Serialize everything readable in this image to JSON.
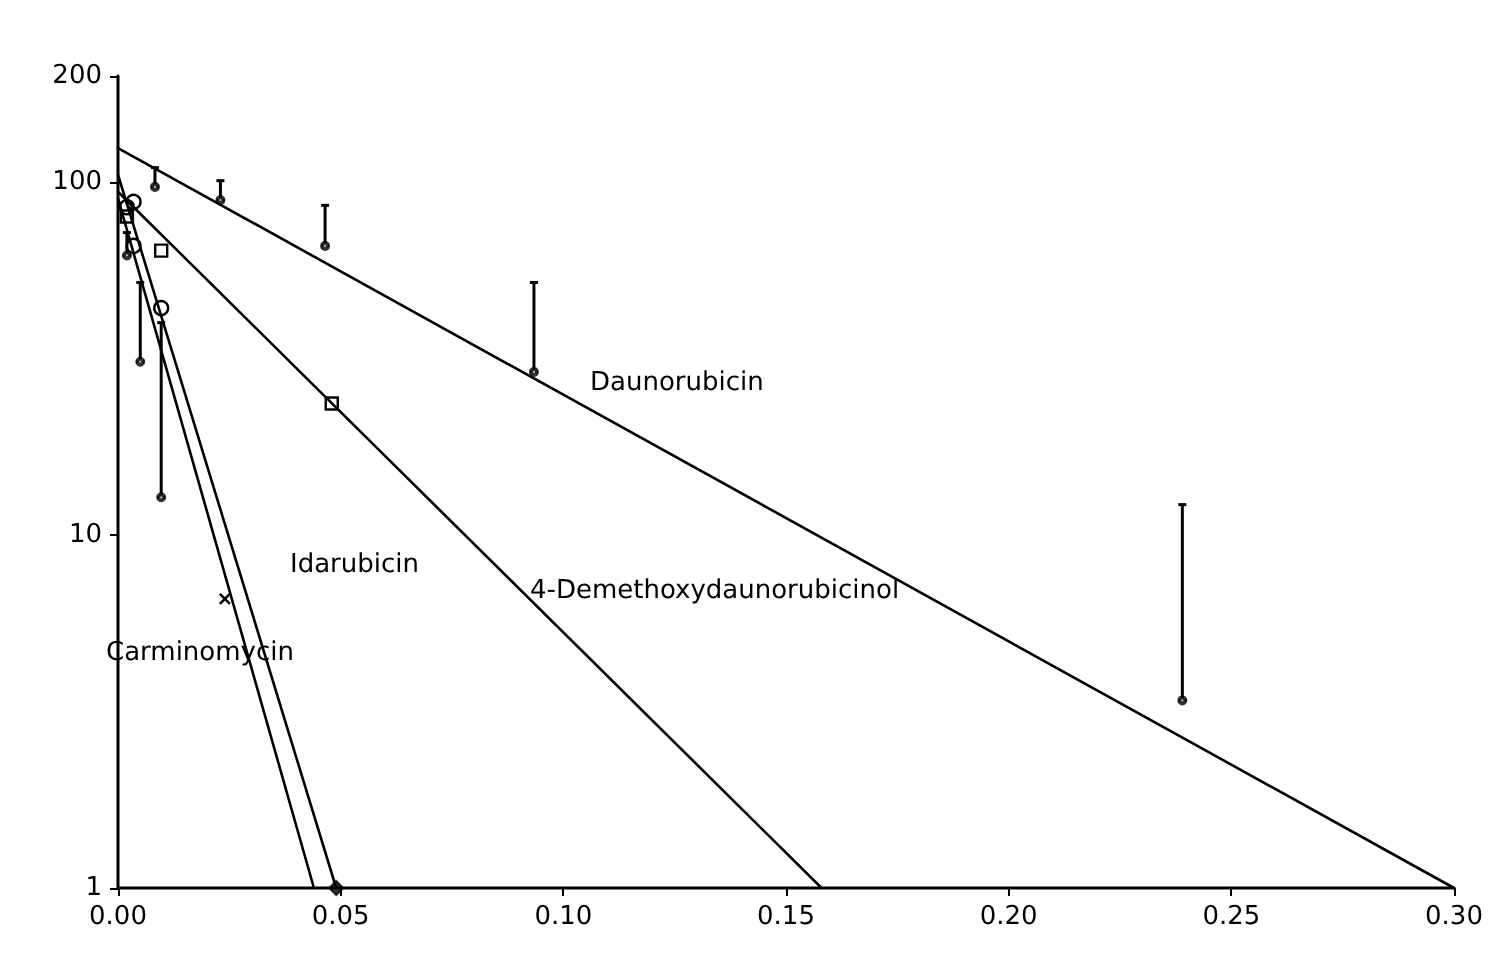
{
  "chart_data": {
    "type": "line",
    "log": "y",
    "grid": false,
    "line_style": "solid",
    "xlim": [
      0,
      0.3
    ],
    "ylim": [
      1,
      200
    ],
    "xticks": [
      {
        "value": 0,
        "label": "0.00"
      },
      {
        "value": 0.05,
        "label": "0.05"
      },
      {
        "value": 0.1,
        "label": "0.10"
      },
      {
        "value": 0.15,
        "label": "0.15"
      },
      {
        "value": 0.2,
        "label": "0.20"
      },
      {
        "value": 0.25,
        "label": "0.25"
      },
      {
        "value": 0.3,
        "label": "0.30"
      }
    ],
    "yticks": [
      1,
      10,
      100,
      200
    ],
    "series": [
      {
        "color": "#000000",
        "marker": "none",
        "x": [
          0,
          0.3
        ],
        "values": [
          125,
          1
        ]
      },
      {
        "color": "#000000",
        "marker": "none",
        "x": [
          0,
          0.158
        ],
        "values": [
          94,
          1
        ]
      },
      {
        "color": "#000000",
        "marker": "none",
        "x": [
          0,
          0.049
        ],
        "values": [
          105,
          1
        ]
      },
      {
        "color": "#000000",
        "marker": "none",
        "x": [
          0,
          0.044
        ],
        "values": [
          90,
          1
        ]
      },
      {
        "type": "scatter",
        "color": "#000000",
        "marker": "circle",
        "x": [
          0.0083,
          0.023,
          0.0465,
          0.0934,
          0.239
        ],
        "values": [
          97,
          89,
          66,
          29,
          3.4
        ],
        "errors": [
          [
            97,
            110
          ],
          [
            89,
            101
          ],
          [
            66,
            86
          ],
          [
            29,
            52
          ],
          [
            3.4,
            12.2
          ]
        ]
      },
      {
        "type": "scatter",
        "color": "#000000",
        "marker": "circle",
        "x": [
          0.002,
          0.005,
          0.0097
        ],
        "values": [
          62,
          31,
          12.8
        ],
        "errors": [
          [
            62,
            72
          ],
          [
            31,
            52
          ],
          [
            12.8,
            40
          ]
        ]
      },
      {
        "type": "scatter",
        "color": "#000000",
        "marker": "circle",
        "x": [
          0.0035,
          0.0035,
          0.0097,
          0.002
        ],
        "values": [
          88,
          66,
          44,
          85
        ]
      },
      {
        "type": "scatter",
        "color": "#000000",
        "marker": "square",
        "x": [
          0.0097,
          0.048,
          0.002
        ],
        "values": [
          64,
          23.6,
          80
        ]
      },
      {
        "type": "scatter",
        "color": "#000000",
        "marker": "cross",
        "x": [
          0.024
        ],
        "values": [
          6.6
        ]
      },
      {
        "type": "scatter",
        "color": "#000000",
        "marker": "diamond",
        "x": [
          0.049
        ],
        "values": [
          1
        ]
      }
    ],
    "annotations": [
      "Daunorubicin",
      "Idarubicin",
      "4-Demethoxydaunorubicinol",
      "Carminomycin"
    ]
  }
}
